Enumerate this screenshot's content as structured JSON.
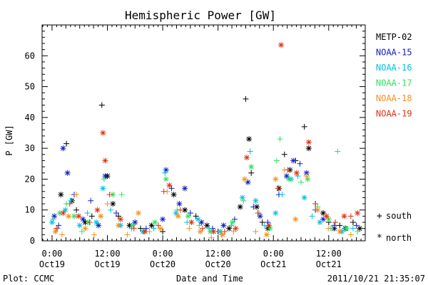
{
  "chart_data": {
    "type": "scatter",
    "title": "Hemispheric Power [GW]",
    "xlabel": "Date and Time",
    "ylabel": "P [GW]",
    "ylim": [
      0,
      70
    ],
    "xlim": [
      -0.09,
      2.83
    ],
    "x_unit": "days from Oct19 00:00",
    "yticks": [
      0,
      10,
      20,
      30,
      40,
      50,
      60
    ],
    "xticks": [
      {
        "x": 0.0,
        "top": "0:00",
        "bottom": "Oct19"
      },
      {
        "x": 0.5,
        "top": "12:00",
        "bottom": "Oct19"
      },
      {
        "x": 1.0,
        "top": "0:00",
        "bottom": "Oct20"
      },
      {
        "x": 1.5,
        "top": "12:00",
        "bottom": "Oct20"
      },
      {
        "x": 2.0,
        "top": "0:00",
        "bottom": "Oct21"
      },
      {
        "x": 2.5,
        "top": "12:00",
        "bottom": "Oct21"
      }
    ],
    "legend_position": "right",
    "marker_legend": [
      {
        "symbol": "+",
        "label": "south"
      },
      {
        "symbol": "*",
        "label": "north"
      }
    ],
    "footer_left": "Plot: CCMC",
    "footer_right": "2011/10/21 21:35:07",
    "series": [
      {
        "name": "METP-02",
        "color": "#000000",
        "points": [
          [
            0.08,
            15,
            "n"
          ],
          [
            0.13,
            31.5,
            "s"
          ],
          [
            0.18,
            13,
            "n"
          ],
          [
            0.22,
            10,
            "s"
          ],
          [
            0.3,
            6,
            "n"
          ],
          [
            0.36,
            8,
            "s"
          ],
          [
            0.45,
            44,
            "s"
          ],
          [
            0.5,
            21,
            "n"
          ],
          [
            0.55,
            12,
            "n"
          ],
          [
            0.6,
            8,
            "s"
          ],
          [
            0.7,
            5,
            "n"
          ],
          [
            0.8,
            4,
            "s"
          ],
          [
            0.9,
            5,
            "n"
          ],
          [
            1.0,
            3,
            "s"
          ],
          [
            1.1,
            15,
            "n"
          ],
          [
            1.2,
            10,
            "n"
          ],
          [
            1.3,
            8,
            "s"
          ],
          [
            1.4,
            5,
            "n"
          ],
          [
            1.5,
            3,
            "s"
          ],
          [
            1.6,
            4,
            "n"
          ],
          [
            1.7,
            11,
            "n"
          ],
          [
            1.75,
            46,
            "s"
          ],
          [
            1.78,
            33,
            "n"
          ],
          [
            1.8,
            22,
            "s"
          ],
          [
            1.85,
            11,
            "n"
          ],
          [
            1.9,
            6,
            "s"
          ],
          [
            1.95,
            4,
            "n"
          ],
          [
            2.05,
            17,
            "n"
          ],
          [
            2.1,
            28,
            "s"
          ],
          [
            2.15,
            23,
            "n"
          ],
          [
            2.2,
            26,
            "s"
          ],
          [
            2.28,
            37,
            "s"
          ],
          [
            2.32,
            30,
            "n"
          ],
          [
            2.38,
            12,
            "s"
          ],
          [
            2.45,
            9,
            "n"
          ],
          [
            2.5,
            6,
            "s"
          ],
          [
            2.55,
            4,
            "n"
          ],
          [
            2.6,
            5,
            "s"
          ],
          [
            2.65,
            4,
            "n"
          ],
          [
            2.72,
            6,
            "s"
          ],
          [
            2.78,
            4,
            "n"
          ]
        ]
      },
      {
        "name": "NOAA-15",
        "color": "#1020c0",
        "points": [
          [
            0.02,
            8,
            "n"
          ],
          [
            0.06,
            5,
            "s"
          ],
          [
            0.1,
            30,
            "n"
          ],
          [
            0.14,
            22,
            "n"
          ],
          [
            0.2,
            15,
            "s"
          ],
          [
            0.28,
            7,
            "n"
          ],
          [
            0.35,
            13,
            "s"
          ],
          [
            0.42,
            5,
            "n"
          ],
          [
            0.48,
            21,
            "n"
          ],
          [
            0.58,
            9,
            "s"
          ],
          [
            0.75,
            6,
            "n"
          ],
          [
            0.85,
            4,
            "s"
          ],
          [
            1.0,
            7,
            "n"
          ],
          [
            1.03,
            23,
            "n"
          ],
          [
            1.08,
            17,
            "s"
          ],
          [
            1.15,
            12,
            "n"
          ],
          [
            1.2,
            17,
            "n"
          ],
          [
            1.25,
            9,
            "s"
          ],
          [
            1.35,
            6,
            "n"
          ],
          [
            1.45,
            4,
            "s"
          ],
          [
            1.55,
            5,
            "n"
          ],
          [
            1.65,
            7,
            "s"
          ],
          [
            1.77,
            19,
            "n"
          ],
          [
            1.82,
            11,
            "s"
          ],
          [
            1.88,
            8,
            "n"
          ],
          [
            1.95,
            6,
            "s"
          ],
          [
            2.05,
            15,
            "s"
          ],
          [
            2.12,
            21,
            "n"
          ],
          [
            2.18,
            26,
            "n"
          ],
          [
            2.24,
            25,
            "s"
          ],
          [
            2.3,
            22,
            "n"
          ],
          [
            2.38,
            10,
            "s"
          ],
          [
            2.45,
            7,
            "n"
          ],
          [
            2.55,
            5,
            "s"
          ],
          [
            2.65,
            4,
            "n"
          ],
          [
            2.75,
            5,
            "s"
          ]
        ]
      },
      {
        "name": "NOAA-16",
        "color": "#00c0e0",
        "points": [
          [
            0.0,
            6,
            "n"
          ],
          [
            0.05,
            4,
            "s"
          ],
          [
            0.12,
            10,
            "n"
          ],
          [
            0.17,
            13,
            "s"
          ],
          [
            0.25,
            5,
            "n"
          ],
          [
            0.32,
            9,
            "s"
          ],
          [
            0.4,
            6,
            "n"
          ],
          [
            0.46,
            17,
            "n"
          ],
          [
            0.53,
            10,
            "s"
          ],
          [
            0.62,
            5,
            "n"
          ],
          [
            0.72,
            4,
            "s"
          ],
          [
            0.82,
            3,
            "n"
          ],
          [
            0.92,
            4,
            "s"
          ],
          [
            1.02,
            22,
            "s"
          ],
          [
            1.12,
            9,
            "n"
          ],
          [
            1.22,
            6,
            "s"
          ],
          [
            1.32,
            7,
            "n"
          ],
          [
            1.42,
            4,
            "s"
          ],
          [
            1.52,
            3,
            "n"
          ],
          [
            1.62,
            5,
            "s"
          ],
          [
            1.72,
            14,
            "n"
          ],
          [
            1.79,
            29,
            "s"
          ],
          [
            1.84,
            13,
            "n"
          ],
          [
            1.92,
            5,
            "s"
          ],
          [
            2.02,
            9,
            "n"
          ],
          [
            2.08,
            15,
            "s"
          ],
          [
            2.16,
            20,
            "n"
          ],
          [
            2.22,
            21,
            "s"
          ],
          [
            2.28,
            14,
            "n"
          ],
          [
            2.35,
            8,
            "s"
          ],
          [
            2.42,
            6,
            "n"
          ],
          [
            2.52,
            4,
            "s"
          ],
          [
            2.62,
            3,
            "n"
          ],
          [
            2.72,
            4,
            "s"
          ]
        ]
      },
      {
        "name": "NOAA-17",
        "color": "#30e060",
        "points": [
          [
            0.01,
            7,
            "s"
          ],
          [
            0.07,
            9,
            "n"
          ],
          [
            0.13,
            12,
            "s"
          ],
          [
            0.2,
            8,
            "n"
          ],
          [
            0.27,
            3,
            "s"
          ],
          [
            0.33,
            6,
            "n"
          ],
          [
            0.47,
            20,
            "s"
          ],
          [
            0.55,
            15,
            "n"
          ],
          [
            0.63,
            15,
            "s"
          ],
          [
            0.73,
            5,
            "n"
          ],
          [
            0.83,
            3,
            "s"
          ],
          [
            0.93,
            6,
            "n"
          ],
          [
            1.03,
            20,
            "n"
          ],
          [
            1.13,
            10,
            "s"
          ],
          [
            1.23,
            8,
            "n"
          ],
          [
            1.33,
            5,
            "s"
          ],
          [
            1.43,
            3,
            "n"
          ],
          [
            1.53,
            2,
            "s"
          ],
          [
            1.63,
            6,
            "n"
          ],
          [
            1.73,
            13,
            "s"
          ],
          [
            1.8,
            24,
            "n"
          ],
          [
            1.87,
            9,
            "s"
          ],
          [
            1.97,
            4,
            "n"
          ],
          [
            2.03,
            26,
            "s"
          ],
          [
            2.06,
            33,
            "s"
          ],
          [
            2.14,
            20,
            "n"
          ],
          [
            2.25,
            19,
            "s"
          ],
          [
            2.31,
            20,
            "n"
          ],
          [
            2.4,
            11,
            "s"
          ],
          [
            2.5,
            7,
            "n"
          ],
          [
            2.58,
            29,
            "s"
          ],
          [
            2.66,
            4,
            "n"
          ],
          [
            2.76,
            3,
            "s"
          ]
        ]
      },
      {
        "name": "NOAA-18",
        "color": "#f09020",
        "points": [
          [
            0.03,
            3,
            "n"
          ],
          [
            0.09,
            2,
            "s"
          ],
          [
            0.15,
            8,
            "n"
          ],
          [
            0.22,
            15,
            "s"
          ],
          [
            0.3,
            4,
            "n"
          ],
          [
            0.38,
            2,
            "s"
          ],
          [
            0.44,
            8,
            "n"
          ],
          [
            0.5,
            12,
            "s"
          ],
          [
            0.6,
            5,
            "n"
          ],
          [
            0.68,
            2,
            "s"
          ],
          [
            0.78,
            9,
            "n"
          ],
          [
            0.88,
            3,
            "s"
          ],
          [
            0.98,
            4,
            "n"
          ],
          [
            1.04,
            16,
            "s"
          ],
          [
            1.14,
            8,
            "n"
          ],
          [
            1.24,
            4,
            "s"
          ],
          [
            1.34,
            3,
            "n"
          ],
          [
            1.44,
            1,
            "s"
          ],
          [
            1.54,
            2,
            "n"
          ],
          [
            1.64,
            3,
            "s"
          ],
          [
            1.74,
            20,
            "n"
          ],
          [
            1.84,
            3,
            "s"
          ],
          [
            1.94,
            2,
            "n"
          ],
          [
            2.02,
            20,
            "n"
          ],
          [
            2.1,
            23,
            "s"
          ],
          [
            2.2,
            7,
            "n"
          ],
          [
            2.3,
            21,
            "s"
          ],
          [
            2.4,
            10,
            "n"
          ],
          [
            2.5,
            4,
            "s"
          ],
          [
            2.6,
            3,
            "n"
          ],
          [
            2.7,
            2,
            "s"
          ]
        ]
      },
      {
        "name": "NOAA-19",
        "color": "#e03010",
        "points": [
          [
            0.04,
            4,
            "s"
          ],
          [
            0.1,
            9,
            "n"
          ],
          [
            0.16,
            12,
            "s"
          ],
          [
            0.24,
            8,
            "n"
          ],
          [
            0.34,
            6,
            "s"
          ],
          [
            0.41,
            10,
            "n"
          ],
          [
            0.46,
            35,
            "n"
          ],
          [
            0.48,
            26,
            "n"
          ],
          [
            0.52,
            15,
            "s"
          ],
          [
            0.62,
            7,
            "n"
          ],
          [
            0.74,
            4,
            "s"
          ],
          [
            0.84,
            3,
            "n"
          ],
          [
            0.96,
            5,
            "s"
          ],
          [
            1.01,
            16,
            "s"
          ],
          [
            1.06,
            18,
            "n"
          ],
          [
            1.16,
            10,
            "s"
          ],
          [
            1.26,
            6,
            "n"
          ],
          [
            1.36,
            4,
            "s"
          ],
          [
            1.46,
            3,
            "n"
          ],
          [
            1.56,
            3,
            "s"
          ],
          [
            1.66,
            4,
            "n"
          ],
          [
            1.76,
            27,
            "n"
          ],
          [
            1.86,
            9,
            "s"
          ],
          [
            1.96,
            5,
            "n"
          ],
          [
            2.04,
            17,
            "s"
          ],
          [
            2.07,
            63.5,
            "n"
          ],
          [
            2.13,
            23,
            "s"
          ],
          [
            2.21,
            22,
            "n"
          ],
          [
            2.32,
            32,
            "n"
          ],
          [
            2.38,
            12,
            "s"
          ],
          [
            2.48,
            8,
            "n"
          ],
          [
            2.56,
            6,
            "s"
          ],
          [
            2.64,
            8,
            "n"
          ],
          [
            2.7,
            8,
            "s"
          ],
          [
            2.76,
            9,
            "n"
          ]
        ]
      }
    ]
  }
}
